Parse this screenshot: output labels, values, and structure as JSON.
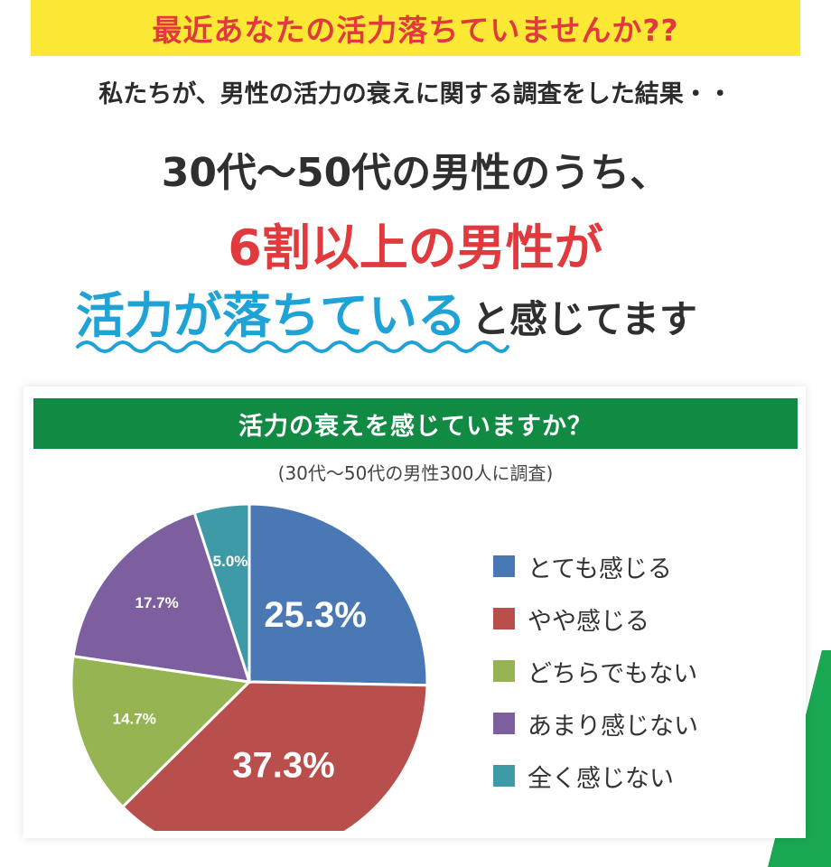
{
  "banner": {
    "text": "最近あなたの活力落ちていませんか??"
  },
  "subtitle": "私たちが、男性の活力の衰えに関する調査をした結果・・",
  "headline": {
    "line1": "30代〜50代の男性のうち、",
    "line2": "6割以上の男性が",
    "line3_highlight": "活力が落ちている",
    "line3_tail": "と感じてます"
  },
  "colors": {
    "banner_bg": "#fde935",
    "accent_red": "#e03a3e",
    "accent_blue": "#1fa3d6",
    "header_green": "#118a43"
  },
  "chart_data": {
    "type": "pie",
    "title": "活力の衰えを感じていますか？",
    "subtitle": "(30代〜50代の男性300人に調査)",
    "categories": [
      "とても感じる",
      "やや感じる",
      "どちらでもない",
      "あまり感じない",
      "全く感じない"
    ],
    "values": [
      25.3,
      37.3,
      14.7,
      17.7,
      5.0
    ],
    "value_labels": [
      "25.3%",
      "37.3%",
      "14.7%",
      "17.7%",
      "5.0%"
    ],
    "colors": [
      "#4a78b5",
      "#b84f4c",
      "#96b552",
      "#7d5fa0",
      "#3e9aa6"
    ],
    "legend_position": "right"
  }
}
